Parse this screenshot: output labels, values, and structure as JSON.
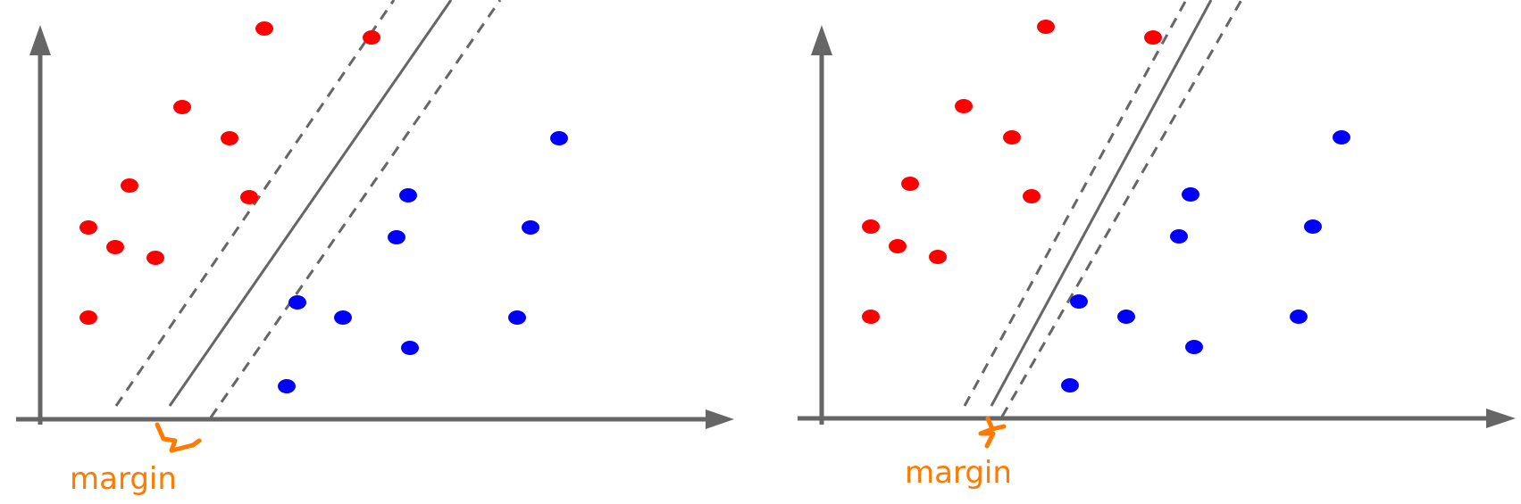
{
  "colors": {
    "axis": "#666666",
    "class_a": "#ff0000",
    "class_b": "#0000ff",
    "annotation": "#ff7a00"
  },
  "panels": [
    {
      "name": "wide-margin",
      "margin_label": "margin",
      "boundary": {
        "x0": 190,
        "slope": 1.4867
      },
      "margin_offsets": [
        -62,
        46
      ],
      "class_a_points": [
        [
          296,
          32
        ],
        [
          416,
          42
        ],
        [
          204,
          120
        ],
        [
          257,
          155
        ],
        [
          145,
          208
        ],
        [
          279,
          221
        ],
        [
          99,
          255
        ],
        [
          129,
          277
        ],
        [
          174,
          289
        ],
        [
          99,
          356
        ]
      ],
      "class_b_points": [
        [
          626,
          155
        ],
        [
          457,
          219
        ],
        [
          594,
          255
        ],
        [
          444,
          266
        ],
        [
          333,
          339
        ],
        [
          384,
          356
        ],
        [
          579,
          356
        ],
        [
          459,
          390
        ],
        [
          321,
          433
        ]
      ]
    },
    {
      "name": "narrow-margin",
      "margin_label": "margin",
      "boundary": {
        "x0": 1110,
        "slope": 1.9565
      },
      "margin_offsets": [
        -30,
        12
      ],
      "class_a_points": [
        [
          1171,
          30
        ],
        [
          1291,
          42
        ],
        [
          1079,
          119
        ],
        [
          1133,
          154
        ],
        [
          1019,
          206
        ],
        [
          1155,
          220
        ],
        [
          975,
          254
        ],
        [
          1005,
          276
        ],
        [
          1050,
          288
        ],
        [
          975,
          355
        ]
      ],
      "class_b_points": [
        [
          1502,
          154
        ],
        [
          1333,
          218
        ],
        [
          1470,
          254
        ],
        [
          1320,
          265
        ],
        [
          1208,
          338
        ],
        [
          1261,
          355
        ],
        [
          1454,
          355
        ],
        [
          1337,
          389
        ],
        [
          1198,
          432
        ]
      ]
    }
  ]
}
